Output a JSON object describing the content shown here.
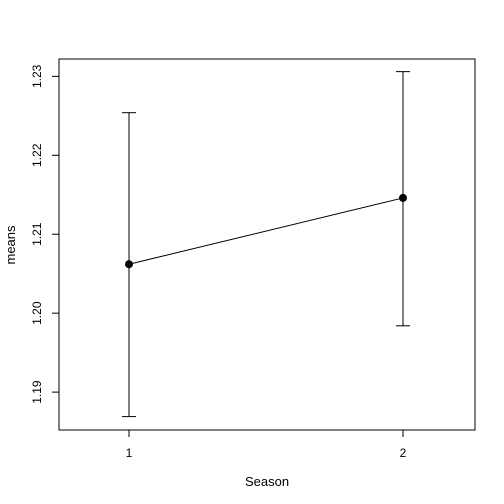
{
  "chart_data": {
    "type": "line",
    "title": "",
    "xlabel": "Season",
    "ylabel": "means",
    "x": [
      "1",
      "2"
    ],
    "series": [
      {
        "values": [
          1.2062,
          1.2146
        ]
      }
    ],
    "error_bars": {
      "lower": [
        1.1869,
        1.1984
      ],
      "upper": [
        1.2254,
        1.2306
      ]
    },
    "x_ticks": [
      "1",
      "2"
    ],
    "y_ticks": [
      "1.19",
      "1.20",
      "1.21",
      "1.22",
      "1.23"
    ],
    "y_tick_values": [
      1.19,
      1.2,
      1.21,
      1.22,
      1.23
    ],
    "ylim": [
      1.1852,
      1.2322
    ],
    "grid": false,
    "colors": {
      "line": "#000000",
      "marker": "#000000"
    }
  }
}
